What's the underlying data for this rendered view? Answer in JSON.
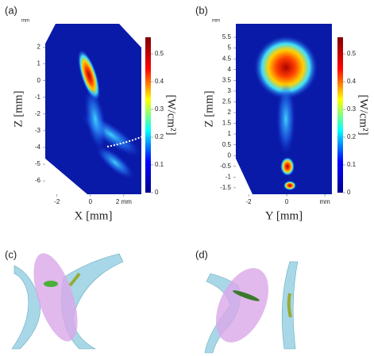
{
  "panels": [
    {
      "label": "(a)",
      "unit": "mm",
      "ylabel": "Z [mm]",
      "xlabel": "X [mm]",
      "ylim": [
        -6.8,
        3.4
      ],
      "yticks": [
        2,
        1,
        0,
        -1,
        -2,
        -3,
        -4,
        -5,
        -6
      ],
      "xlim": [
        -2.7,
        3.05
      ],
      "xticks": [
        -2,
        0,
        {
          "value": 2,
          "label": "2 mm"
        }
      ],
      "colorbar": {
        "label": "[W/cm²]",
        "lim": [
          0,
          0.56
        ],
        "ticks": [
          0,
          0.1,
          0.2,
          0.3,
          0.4,
          0.5
        ]
      }
    },
    {
      "label": "(b)",
      "unit": "mm",
      "ylabel": "Z [mm]",
      "xlabel": "Y [mm]",
      "ylim": [
        -1.8,
        6.13
      ],
      "yticks": [
        5.5,
        5,
        4.5,
        4,
        3.5,
        3,
        2.5,
        2,
        1.5,
        1,
        0.5,
        0,
        -0.5,
        -1,
        -1.5
      ],
      "xlim": [
        -2.67,
        2.37
      ],
      "xticks": [
        -2,
        0,
        {
          "value": 2,
          "label": "mm"
        }
      ],
      "colorbar": {
        "label": "[W/cm²]",
        "lim": [
          0,
          0.56
        ],
        "ticks": [
          0,
          0.1,
          0.2,
          0.3,
          0.4,
          0.5
        ]
      }
    },
    {
      "label": "(c)"
    },
    {
      "label": "(d)"
    }
  ]
}
